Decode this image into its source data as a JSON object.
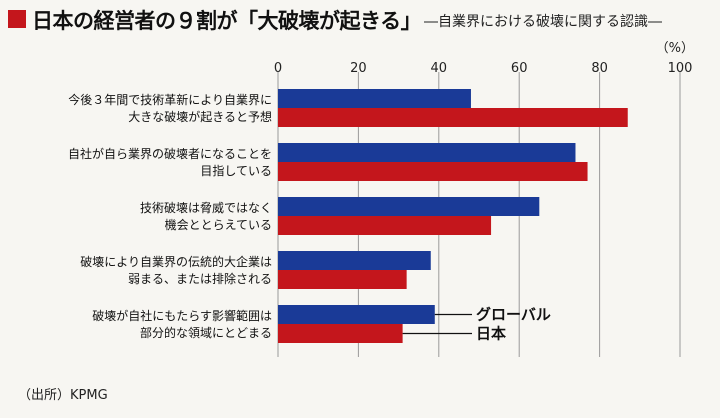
{
  "header": {
    "title": "日本の経営者の９割が「大破壊が起きる」",
    "subtitle": "―自業界における破壊に関する認識―"
  },
  "source": "（出所）KPMG",
  "colors": {
    "global": "#1a3a97",
    "japan": "#c4161c",
    "title_mark": "#c4161c"
  },
  "chart_data": {
    "type": "bar",
    "orientation": "horizontal",
    "unit_label": "（%）",
    "xlim": [
      0,
      100
    ],
    "xticks": [
      0,
      20,
      40,
      60,
      80,
      100
    ],
    "grid": true,
    "legend_placement": "bottom-right, attached to last category",
    "categories": [
      [
        "今後３年間で技術革新により自業界に",
        "大きな破壊が起きると予想"
      ],
      [
        "自社が自ら業界の破壊者になることを",
        "目指している"
      ],
      [
        "技術破壊は脅威ではなく",
        "機会ととらえている"
      ],
      [
        "破壊により自業界の伝統的大企業は",
        "弱まる、または排除される"
      ],
      [
        "破壊が自社にもたらす影響範囲は",
        "部分的な領域にとどまる"
      ]
    ],
    "series": [
      {
        "name": "グローバル",
        "color": "#1a3a97",
        "values": [
          48,
          74,
          65,
          38,
          39
        ]
      },
      {
        "name": "日本",
        "color": "#c4161c",
        "values": [
          87,
          77,
          53,
          32,
          31
        ]
      }
    ]
  }
}
